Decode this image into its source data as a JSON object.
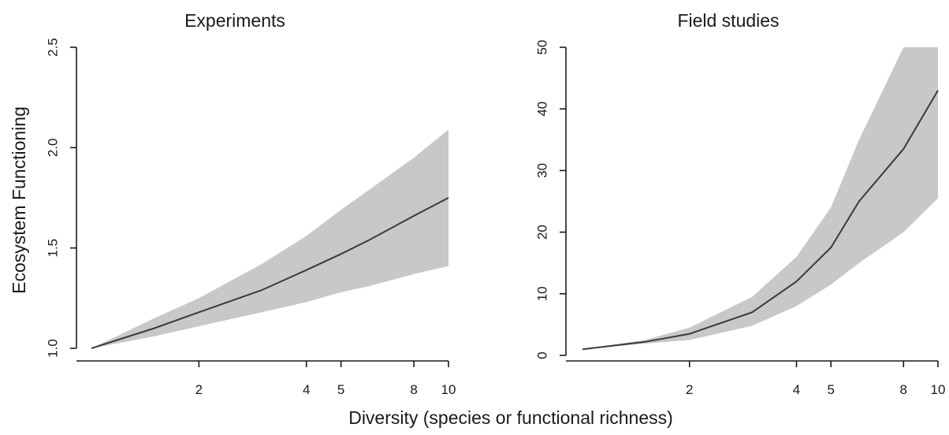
{
  "figure": {
    "shared_xlabel": "Diversity (species or functional richness)",
    "shared_ylabel": "Ecosystem Functioning"
  },
  "colors": {
    "band": "#c8c8c8",
    "line": "#3a3a3a",
    "axis": "#1a1a1a"
  },
  "chart_data": [
    {
      "type": "line",
      "title": "Experiments",
      "xlabel": "Diversity (species or functional richness)",
      "ylabel": "Ecosystem Functioning",
      "x_scale": "log",
      "x_ticks": [
        2,
        4,
        5,
        8,
        10
      ],
      "x_tick_labels": [
        "2",
        "4",
        "5",
        "8",
        "10"
      ],
      "y_ticks": [
        1.0,
        1.5,
        2.0,
        2.5
      ],
      "y_tick_labels": [
        "1.0",
        "1.5",
        "2.0",
        "2.5"
      ],
      "ylim": [
        1.0,
        2.5
      ],
      "grid": false,
      "series": [
        {
          "x": [
            1.0,
            1.5,
            2.0,
            3.0,
            4.0,
            5.0,
            6.0,
            8.0,
            10.0
          ],
          "mean": [
            1.0,
            1.1,
            1.18,
            1.29,
            1.39,
            1.47,
            1.54,
            1.66,
            1.75
          ],
          "lower": [
            1.0,
            1.06,
            1.11,
            1.18,
            1.23,
            1.28,
            1.31,
            1.37,
            1.41
          ],
          "upper": [
            1.0,
            1.15,
            1.25,
            1.42,
            1.56,
            1.69,
            1.79,
            1.95,
            2.09
          ]
        }
      ]
    },
    {
      "type": "line",
      "title": "Field studies",
      "xlabel": "Diversity (species or functional richness)",
      "ylabel": "",
      "x_scale": "log",
      "x_ticks": [
        2,
        4,
        5,
        8,
        10
      ],
      "x_tick_labels": [
        "2",
        "4",
        "5",
        "8",
        "10"
      ],
      "y_ticks": [
        0,
        10,
        20,
        30,
        40,
        50
      ],
      "y_tick_labels": [
        "0",
        "10",
        "20",
        "30",
        "40",
        "50"
      ],
      "ylim": [
        0,
        50
      ],
      "grid": false,
      "series": [
        {
          "x": [
            1.0,
            1.5,
            2.0,
            3.0,
            4.0,
            5.0,
            6.0,
            8.0,
            10.0
          ],
          "mean": [
            1.0,
            2.2,
            3.5,
            7.0,
            12.0,
            17.5,
            25.0,
            33.5,
            43.0
          ],
          "lower": [
            1.0,
            1.9,
            2.5,
            4.8,
            8.0,
            11.5,
            15.0,
            20.0,
            25.5
          ],
          "upper": [
            1.0,
            2.5,
            4.5,
            9.5,
            16.0,
            24.0,
            35.0,
            50.0,
            65.0
          ]
        }
      ]
    }
  ]
}
